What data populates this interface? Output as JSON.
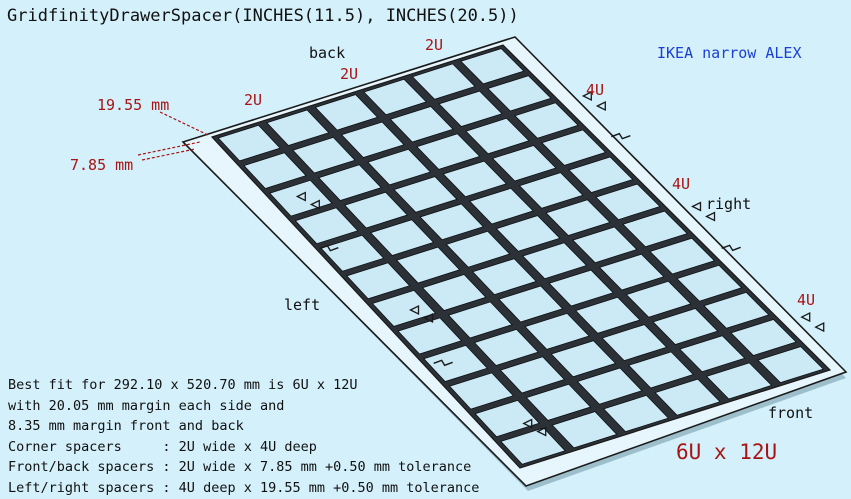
{
  "code_title": "GridfinityDrawerSpacer(INCHES(11.5), INCHES(20.5))",
  "subtitle": "IKEA narrow ALEX",
  "side_labels": {
    "back": "back",
    "right": "right",
    "left": "left",
    "front": "front"
  },
  "unit_labels": {
    "back_a": "2U",
    "back_b": "2U",
    "back_c": "2U",
    "right_a": "4U",
    "right_b": "4U",
    "right_c": "4U"
  },
  "dimensions": {
    "side_spacer_depth": "19.55 mm",
    "front_spacer_depth": "7.85 mm"
  },
  "grid_label": "6U x 12U",
  "grid": {
    "columns": 6,
    "rows": 12
  },
  "notes": [
    "Best fit for 292.10 x 520.70 mm is 6U x 12U",
    "with 20.05 mm margin each side and",
    "8.35 mm margin front and back",
    "Corner spacers     : 2U wide x 4U deep",
    "Front/back spacers : 2U wide x 7.85 mm +0.50 mm tolerance",
    "Left/right spacers : 4U deep x 19.55 mm +0.50 mm tolerance"
  ],
  "colors": {
    "background": "#d4f0fa",
    "label_red": "#a81414",
    "label_blue": "#1a3fd6",
    "grid_fill": "#cceaf6",
    "edge": "#1a1a1a"
  }
}
